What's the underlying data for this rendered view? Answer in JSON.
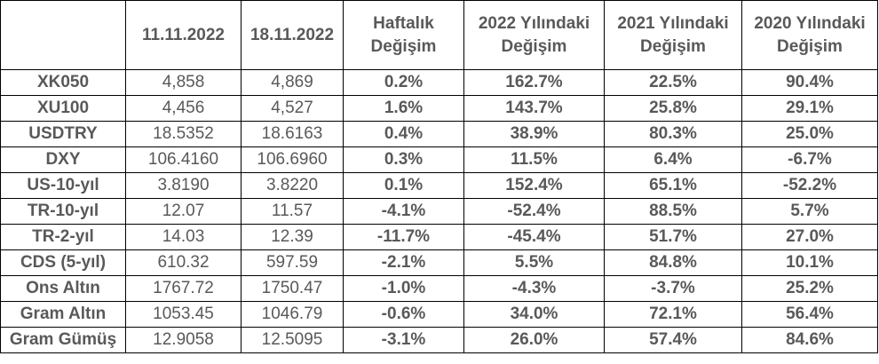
{
  "headers": {
    "corner": "",
    "date1": "11.11.2022",
    "date2": "18.11.2022",
    "weekly": [
      "Haftalık",
      "Değişim"
    ],
    "y2022": [
      "2022 Yılındaki",
      "Değişim"
    ],
    "y2021": [
      "2021 Yılındaki",
      "Değişim"
    ],
    "y2020": [
      "2020 Yılındaki",
      "Değişim"
    ]
  },
  "rows": [
    {
      "label": "XK050",
      "d1": "4,858",
      "d2": "4,869",
      "weekly": "0.2%",
      "y2022": "162.7%",
      "y2021": "22.5%",
      "y2020": "90.4%"
    },
    {
      "label": "XU100",
      "d1": "4,456",
      "d2": "4,527",
      "weekly": "1.6%",
      "y2022": "143.7%",
      "y2021": "25.8%",
      "y2020": "29.1%"
    },
    {
      "label": "USDTRY",
      "d1": "18.5352",
      "d2": "18.6163",
      "weekly": "0.4%",
      "y2022": "38.9%",
      "y2021": "80.3%",
      "y2020": "25.0%"
    },
    {
      "label": "DXY",
      "d1": "106.4160",
      "d2": "106.6960",
      "weekly": "0.3%",
      "y2022": "11.5%",
      "y2021": "6.4%",
      "y2020": "-6.7%"
    },
    {
      "label": "US-10-yıl",
      "d1": "3.8190",
      "d2": "3.8220",
      "weekly": "0.1%",
      "y2022": "152.4%",
      "y2021": "65.1%",
      "y2020": "-52.2%"
    },
    {
      "label": "TR-10-yıl",
      "d1": "12.07",
      "d2": "11.57",
      "weekly": "-4.1%",
      "y2022": "-52.4%",
      "y2021": "88.5%",
      "y2020": "5.7%"
    },
    {
      "label": "TR-2-yıl",
      "d1": "14.03",
      "d2": "12.39",
      "weekly": "-11.7%",
      "y2022": "-45.4%",
      "y2021": "51.7%",
      "y2020": "27.0%"
    },
    {
      "label": "CDS (5-yıl)",
      "d1": "610.32",
      "d2": "597.59",
      "weekly": "-2.1%",
      "y2022": "5.5%",
      "y2021": "84.8%",
      "y2020": "10.1%"
    },
    {
      "label": "Ons Altın",
      "d1": "1767.72",
      "d2": "1750.47",
      "weekly": "-1.0%",
      "y2022": "-4.3%",
      "y2021": "-3.7%",
      "y2020": "25.2%"
    },
    {
      "label": "Gram Altın",
      "d1": "1053.45",
      "d2": "1046.79",
      "weekly": "-0.6%",
      "y2022": "34.0%",
      "y2021": "72.1%",
      "y2020": "56.4%"
    },
    {
      "label": "Gram Gümüş",
      "d1": "12.9058",
      "d2": "12.5095",
      "weekly": "-3.1%",
      "y2022": "26.0%",
      "y2021": "57.4%",
      "y2020": "84.6%"
    }
  ]
}
